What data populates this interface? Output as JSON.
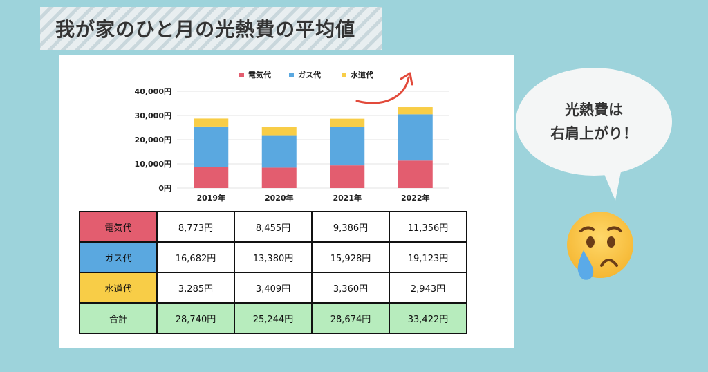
{
  "title": "我が家のひと月の光熱費の平均値",
  "bubble": {
    "line1": "光熱費は",
    "line2": "右肩上がり！"
  },
  "colors": {
    "electricity": "#e35d6f",
    "gas": "#5aa8e0",
    "water": "#f8cd47",
    "total": "#b7ecbd"
  },
  "chart_data": {
    "type": "bar",
    "stacked": true,
    "categories": [
      "2019年",
      "2020年",
      "2021年",
      "2022年"
    ],
    "series": [
      {
        "name": "電気代",
        "values": [
          8773,
          8455,
          9386,
          11356
        ]
      },
      {
        "name": "ガス代",
        "values": [
          16682,
          13380,
          15928,
          19123
        ]
      },
      {
        "name": "水道代",
        "values": [
          3285,
          3409,
          3360,
          2943
        ]
      }
    ],
    "ylim": [
      0,
      40000
    ],
    "yticks": [
      "0円",
      "10,000円",
      "20,000円",
      "30,000円",
      "40,000円"
    ],
    "legend_position": "top",
    "grid": true
  },
  "table": {
    "rows": [
      {
        "label": "電気代",
        "color": "#e35d6f",
        "values": [
          "8,773円",
          "8,455円",
          "9,386円",
          "11,356円"
        ]
      },
      {
        "label": "ガス代",
        "color": "#5aa8e0",
        "values": [
          "16,682円",
          "13,380円",
          "15,928円",
          "19,123円"
        ]
      },
      {
        "label": "水道代",
        "color": "#f8cd47",
        "values": [
          "3,285円",
          "3,409円",
          "3,360円",
          "2,943円"
        ]
      },
      {
        "label": "合計",
        "color": "#b7ecbd",
        "values": [
          "28,740円",
          "25,244円",
          "28,674円",
          "33,422円"
        ]
      }
    ]
  }
}
